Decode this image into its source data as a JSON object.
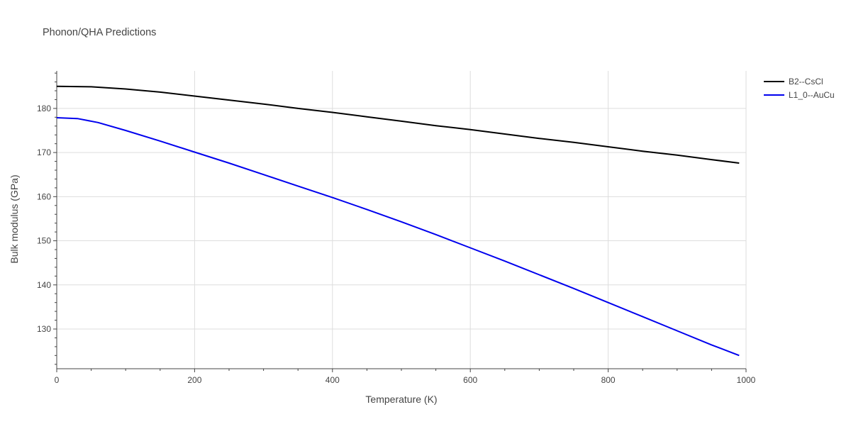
{
  "chart_data": {
    "type": "line",
    "title": "Phonon/QHA Predictions",
    "xlabel": "Temperature (K)",
    "ylabel": "Bulk modulus (GPa)",
    "xlim": [
      0,
      1000
    ],
    "ylim": [
      121,
      188.5
    ],
    "x_ticks": [
      0,
      200,
      400,
      600,
      800,
      1000
    ],
    "y_ticks": [
      130,
      140,
      150,
      160,
      170,
      180
    ],
    "grid": true,
    "legend_position": "top-right",
    "series": [
      {
        "name": "B2--CsCl",
        "color": "#000000",
        "x": [
          0,
          50,
          100,
          150,
          200,
          250,
          300,
          350,
          400,
          450,
          500,
          550,
          600,
          650,
          700,
          750,
          800,
          850,
          900,
          950,
          990
        ],
        "y": [
          185.0,
          184.9,
          184.4,
          183.7,
          182.8,
          181.9,
          181.0,
          180.0,
          179.1,
          178.1,
          177.1,
          176.1,
          175.2,
          174.2,
          173.2,
          172.3,
          171.3,
          170.3,
          169.4,
          168.4,
          167.6
        ]
      },
      {
        "name": "L1_0--AuCu",
        "color": "#0000ee",
        "x": [
          0,
          30,
          60,
          100,
          150,
          200,
          250,
          300,
          350,
          400,
          450,
          500,
          550,
          600,
          650,
          700,
          750,
          800,
          850,
          900,
          950,
          990
        ],
        "y": [
          177.9,
          177.7,
          176.8,
          175.0,
          172.6,
          170.1,
          167.6,
          165.0,
          162.4,
          159.8,
          157.1,
          154.3,
          151.4,
          148.4,
          145.4,
          142.3,
          139.2,
          136.0,
          132.8,
          129.6,
          126.4,
          124.0
        ]
      }
    ]
  }
}
